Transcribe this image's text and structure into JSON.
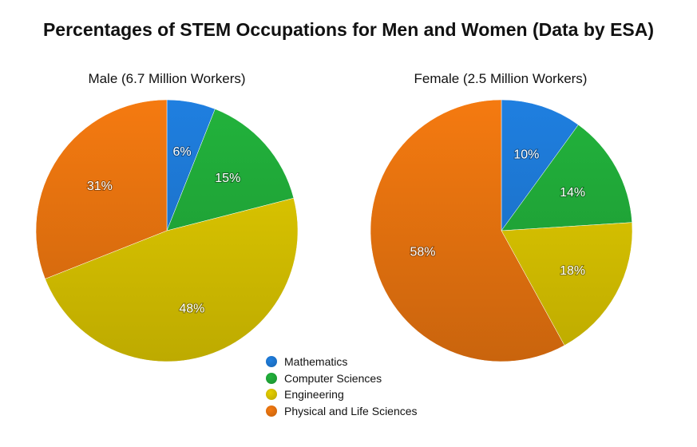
{
  "chart_data": {
    "type": "pie",
    "title": "Percentages of STEM Occupations for Men and Women (Data by ESA)",
    "categories": [
      "Mathematics",
      "Computer Sciences",
      "Engineering",
      "Physical and Life Sciences"
    ],
    "colors": [
      "#1f7fe0",
      "#22b33c",
      "#e6cf00",
      "#f57a10"
    ],
    "pies": [
      {
        "title": "Male (6.7 Million Workers)",
        "values": [
          6,
          15,
          48,
          31
        ],
        "labels": [
          "6%",
          "15%",
          "48%",
          "31%"
        ]
      },
      {
        "title": "Female (2.5 Million Workers)",
        "values": [
          10,
          14,
          18,
          58
        ],
        "labels": [
          "10%",
          "14%",
          "18%",
          "58%"
        ]
      }
    ],
    "legend_position": "bottom-center"
  }
}
